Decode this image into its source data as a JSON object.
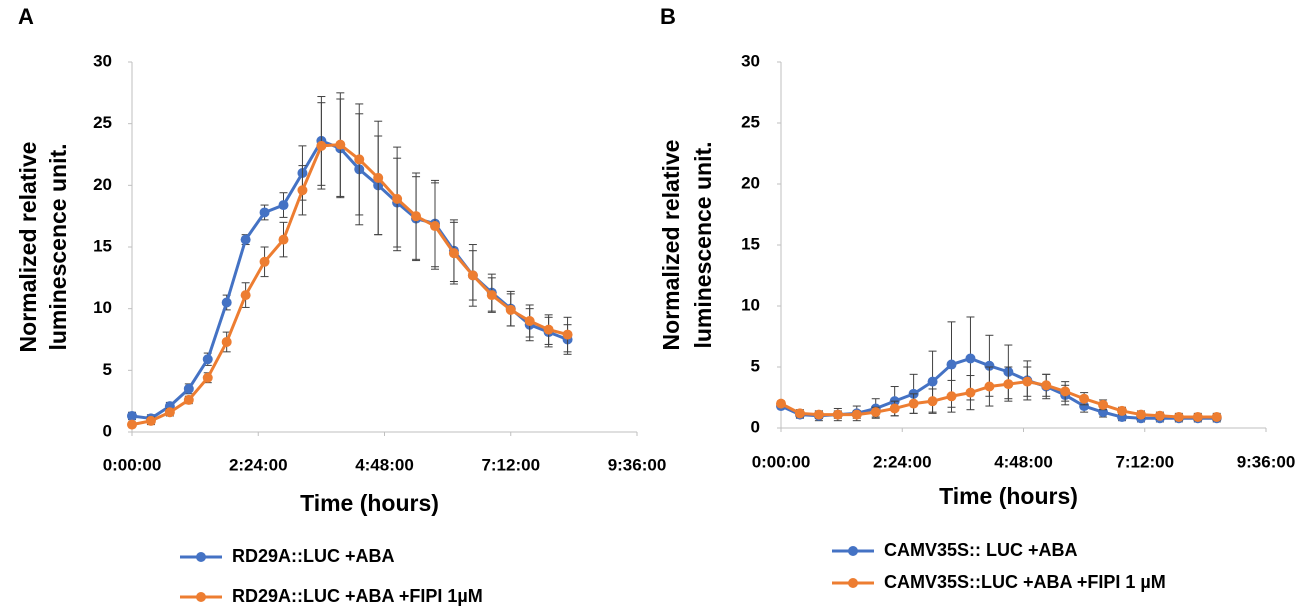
{
  "chart_data": [
    {
      "type": "line",
      "panel": "A",
      "x_label": "Time (hours)",
      "y_label": [
        "Normalized relative",
        "luminescence unit."
      ],
      "xlim": [
        0,
        9.6
      ],
      "xticks": [
        {
          "value": 0,
          "label": "0:00:00"
        },
        {
          "value": 2.4,
          "label": "2:24:00"
        },
        {
          "value": 4.8,
          "label": "4:48:00"
        },
        {
          "value": 7.2,
          "label": "7:12:00"
        },
        {
          "value": 9.6,
          "label": "9:36:00"
        }
      ],
      "ylim": [
        0,
        30
      ],
      "yticks": [
        0,
        5,
        10,
        15,
        20,
        25,
        30
      ],
      "x": [
        0,
        0.36,
        0.72,
        1.08,
        1.44,
        1.8,
        2.16,
        2.52,
        2.88,
        3.24,
        3.6,
        3.96,
        4.32,
        4.68,
        5.04,
        5.4,
        5.76,
        6.12,
        6.48,
        6.84,
        7.2,
        7.56,
        7.92,
        8.28
      ],
      "series": [
        {
          "name": "RD29A::LUC +ABA",
          "color": "#4472c4",
          "values": [
            1.3,
            1.1,
            2.1,
            3.5,
            5.9,
            10.5,
            15.6,
            17.8,
            18.4,
            21.0,
            23.6,
            23.0,
            21.3,
            20.0,
            18.6,
            17.3,
            16.9,
            14.7,
            12.7,
            11.3,
            10.0,
            8.7,
            8.1,
            7.5
          ],
          "errors": [
            0.3,
            0.3,
            0.3,
            0.4,
            0.5,
            0.6,
            0.4,
            0.6,
            1.0,
            2.2,
            3.6,
            4.0,
            4.5,
            4.0,
            3.6,
            3.4,
            3.5,
            2.5,
            2.0,
            1.5,
            1.4,
            1.3,
            1.2,
            1.2
          ]
        },
        {
          "name": "RD29A::LUC +ABA +FIPI 1µM",
          "color": "#ed7d31",
          "values": [
            0.6,
            0.9,
            1.6,
            2.6,
            4.4,
            7.3,
            11.1,
            13.8,
            15.6,
            19.6,
            23.2,
            23.3,
            22.1,
            20.6,
            18.9,
            17.5,
            16.7,
            14.5,
            12.7,
            11.1,
            9.9,
            9.0,
            8.3,
            7.9
          ],
          "errors": [
            0.2,
            0.3,
            0.3,
            0.3,
            0.4,
            0.8,
            1.0,
            1.2,
            1.4,
            2.0,
            3.5,
            4.2,
            4.5,
            4.6,
            4.2,
            3.5,
            3.5,
            2.5,
            2.5,
            1.4,
            1.3,
            1.3,
            1.2,
            1.4
          ]
        }
      ]
    },
    {
      "type": "line",
      "panel": "B",
      "x_label": "Time (hours)",
      "y_label": [
        "Normalized relative",
        "luminescence unit."
      ],
      "xlim": [
        0,
        9.6
      ],
      "xticks": [
        {
          "value": 0,
          "label": "0:00:00"
        },
        {
          "value": 2.4,
          "label": "2:24:00"
        },
        {
          "value": 4.8,
          "label": "4:48:00"
        },
        {
          "value": 7.2,
          "label": "7:12:00"
        },
        {
          "value": 9.6,
          "label": "9:36:00"
        }
      ],
      "ylim": [
        0,
        30
      ],
      "yticks": [
        0,
        5,
        10,
        15,
        20,
        25,
        30
      ],
      "x": [
        0,
        0.375,
        0.75,
        1.125,
        1.5,
        1.875,
        2.25,
        2.625,
        3.0,
        3.375,
        3.75,
        4.125,
        4.5,
        4.875,
        5.25,
        5.625,
        6.0,
        6.375,
        6.75,
        7.125,
        7.5,
        7.875,
        8.25,
        8.625
      ],
      "series": [
        {
          "name": "CAMV35S:: LUC +ABA",
          "color": "#4472c4",
          "values": [
            1.8,
            1.1,
            1.0,
            1.1,
            1.2,
            1.6,
            2.2,
            2.8,
            3.8,
            5.2,
            5.7,
            5.1,
            4.6,
            3.9,
            3.4,
            2.7,
            1.8,
            1.3,
            0.9,
            0.8,
            0.8,
            0.8,
            0.8,
            0.8
          ],
          "errors": [
            0.2,
            0.3,
            0.4,
            0.5,
            0.6,
            0.8,
            1.2,
            1.6,
            2.5,
            3.5,
            3.4,
            2.5,
            2.2,
            1.6,
            1.0,
            0.8,
            0.5,
            0.4,
            0.3,
            0.3,
            0.3,
            0.3,
            0.3,
            0.3
          ]
        },
        {
          "name": "CAMV35S::LUC +ABA +FIPI 1 µM",
          "color": "#ed7d31",
          "values": [
            2.0,
            1.2,
            1.1,
            1.1,
            1.1,
            1.3,
            1.6,
            2.0,
            2.2,
            2.6,
            2.9,
            3.4,
            3.6,
            3.8,
            3.5,
            3.0,
            2.4,
            1.9,
            1.4,
            1.1,
            1.0,
            0.9,
            0.9,
            0.9
          ],
          "errors": [
            0.2,
            0.3,
            0.3,
            0.3,
            0.3,
            0.4,
            0.6,
            0.8,
            1.0,
            1.3,
            1.4,
            1.6,
            1.4,
            1.2,
            0.9,
            0.8,
            0.5,
            0.4,
            0.3,
            0.3,
            0.3,
            0.3,
            0.3,
            0.3
          ]
        }
      ]
    }
  ]
}
